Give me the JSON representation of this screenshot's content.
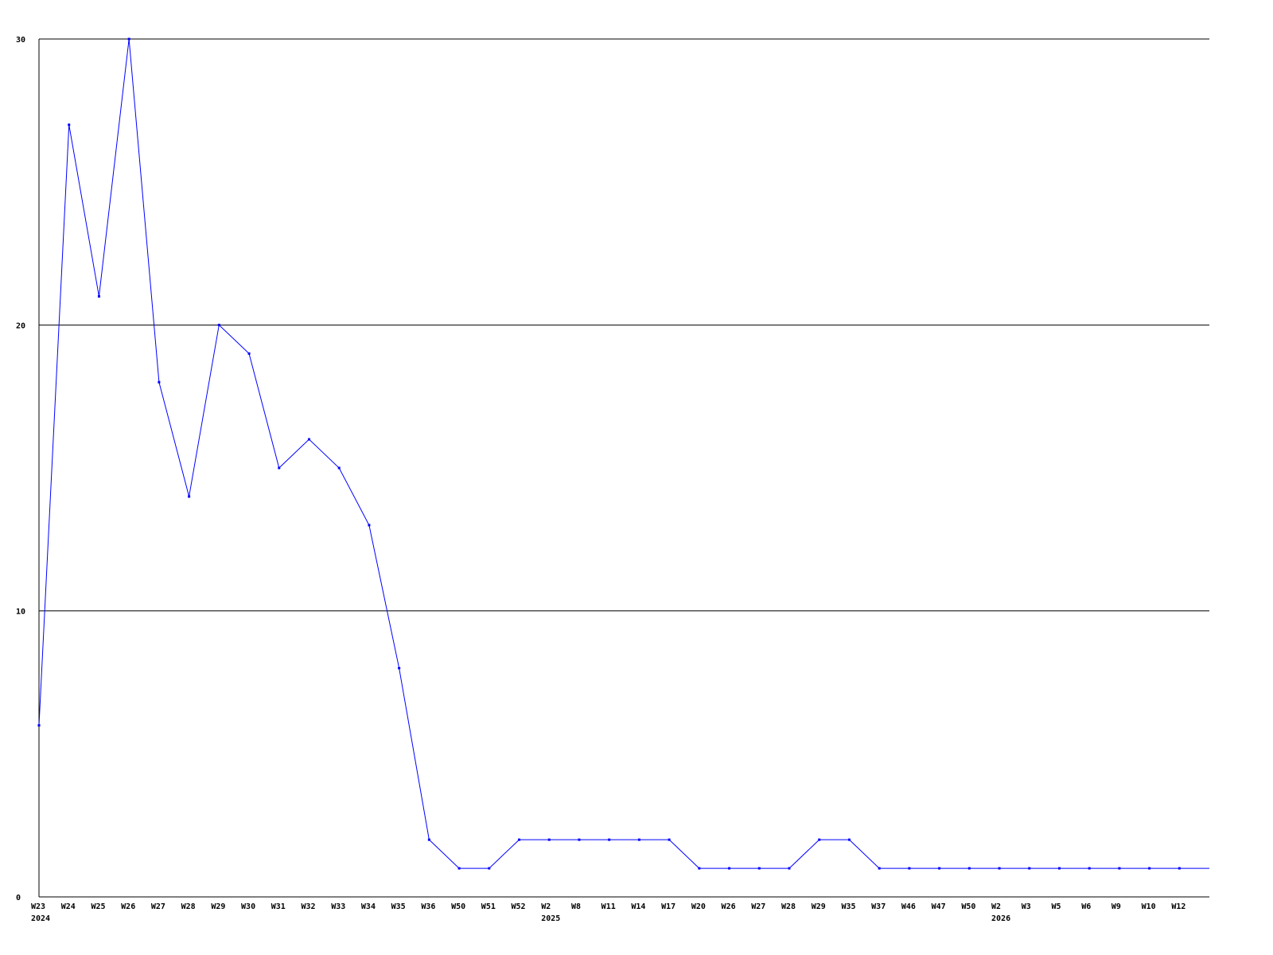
{
  "chart_data": {
    "type": "line",
    "title": "",
    "xlabel": "",
    "ylabel": "",
    "ylim": [
      0,
      30
    ],
    "yticks": [
      0,
      10,
      20,
      30
    ],
    "grid": "horizontal",
    "line_color": "#0000ff",
    "categories": [
      "W23",
      "W24",
      "W25",
      "W26",
      "W27",
      "W28",
      "W29",
      "W30",
      "W31",
      "W32",
      "W33",
      "W34",
      "W35",
      "W36",
      "W50",
      "W51",
      "W52",
      "W2",
      "W8",
      "W11",
      "W14",
      "W17",
      "W20",
      "W26",
      "W27",
      "W28",
      "W29",
      "W35",
      "W37",
      "W46",
      "W47",
      "W50",
      "W2",
      "W3",
      "W5",
      "W6",
      "W9",
      "W10",
      "W12"
    ],
    "year_labels": [
      {
        "index": 0,
        "label": "2024"
      },
      {
        "index": 17,
        "label": "2025"
      },
      {
        "index": 32,
        "label": "2026"
      }
    ],
    "values": [
      6,
      27,
      21,
      30,
      18,
      14,
      20,
      19,
      15,
      16,
      15,
      13,
      8,
      2,
      1,
      1,
      2,
      2,
      2,
      2,
      2,
      2,
      1,
      1,
      1,
      1,
      2,
      2,
      1,
      1,
      1,
      1,
      1,
      1,
      1,
      1,
      1,
      1,
      1
    ]
  }
}
